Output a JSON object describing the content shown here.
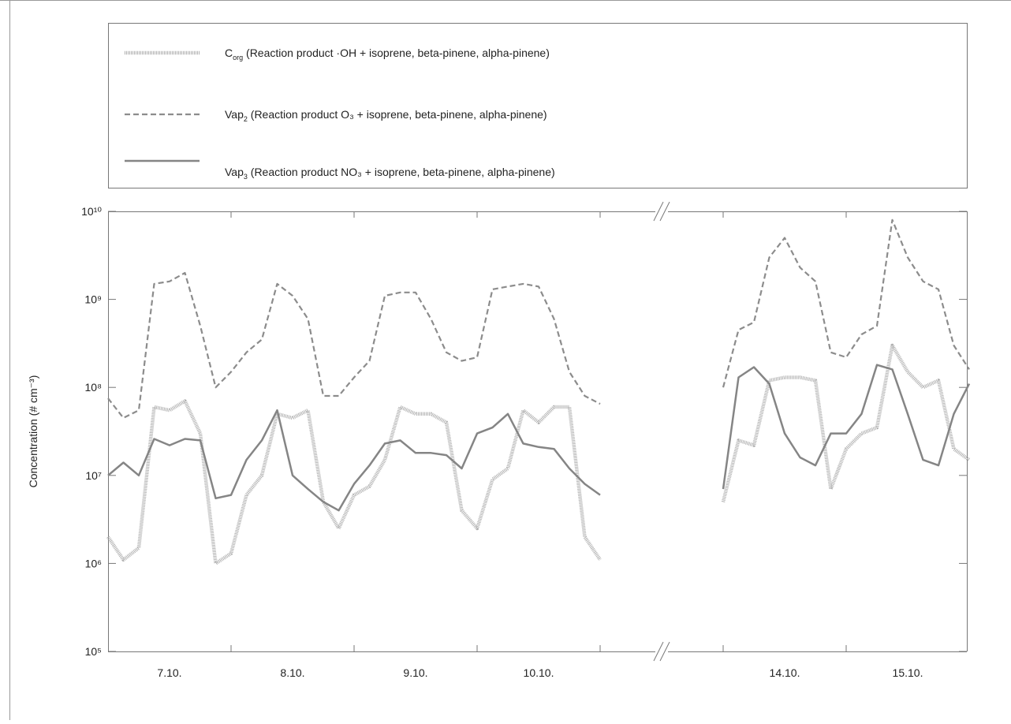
{
  "chart_data": {
    "type": "line",
    "y_label": "Concentration (# cm⁻³)",
    "x": [
      7,
      7.125,
      7.25,
      7.375,
      7.5,
      7.625,
      7.75,
      7.875,
      8,
      8.125,
      8.25,
      8.375,
      8.5,
      8.625,
      8.75,
      8.875,
      9,
      9.125,
      9.25,
      9.375,
      9.5,
      9.625,
      9.75,
      9.875,
      10,
      10.125,
      10.25,
      10.375,
      10.5,
      10.625,
      10.75,
      10.875,
      11,
      14,
      14.125,
      14.25,
      14.375,
      14.5,
      14.625,
      14.75,
      14.875,
      15,
      15.125,
      15.25,
      15.375,
      15.5,
      15.625,
      15.75,
      15.875,
      16
    ],
    "xlim": [
      7,
      16
    ],
    "xbreak": [
      11,
      14
    ],
    "xticks": [
      {
        "value": 7.5,
        "label": "7.10."
      },
      {
        "value": 8.5,
        "label": "8.10."
      },
      {
        "value": 9.5,
        "label": "9.10."
      },
      {
        "value": 10.5,
        "label": "10.10."
      },
      {
        "value": 14.5,
        "label": "14.10."
      },
      {
        "value": 15.5,
        "label": "15.10."
      }
    ],
    "xminorticks": [
      8,
      9,
      10,
      11,
      14,
      15
    ],
    "ylim": [
      100000,
      10000000000
    ],
    "yscale": "log",
    "yticks": [
      {
        "value": 100000,
        "label": "10⁵"
      },
      {
        "value": 1000000,
        "label": "10⁶"
      },
      {
        "value": 10000000,
        "label": "10⁷"
      },
      {
        "value": 100000000,
        "label": "10⁸"
      },
      {
        "value": 1000000000,
        "label": "10⁹"
      },
      {
        "value": 10000000000,
        "label": "10¹⁰"
      }
    ],
    "series": [
      {
        "name": "C",
        "name_sub": "org",
        "description": " (Reaction product ·OH + isoprene, beta-pinene, alpha-pinene)",
        "color": "#b0b0b0",
        "style": "hatched",
        "values": [
          2000000.0,
          1100000.0,
          1500000.0,
          60000000.0,
          55000000.0,
          70000000.0,
          30000000.0,
          1000000.0,
          1300000.0,
          6000000.0,
          10000000.0,
          50000000.0,
          45000000.0,
          55000000.0,
          5000000.0,
          2500000.0,
          6000000.0,
          7500000.0,
          15000000.0,
          60000000.0,
          50000000.0,
          50000000.0,
          40000000.0,
          4000000.0,
          2500000.0,
          9000000.0,
          12000000.0,
          55000000.0,
          40000000.0,
          60000000.0,
          60000000.0,
          2000000.0,
          1100000.0,
          5000000.0,
          25000000.0,
          22000000.0,
          120000000.0,
          130000000.0,
          130000000.0,
          120000000.0,
          7000000.0,
          20000000.0,
          30000000.0,
          35000000.0,
          300000000.0,
          150000000.0,
          100000000.0,
          120000000.0,
          20000000.0,
          15000000.0
        ]
      },
      {
        "name": "Vap",
        "name_sub": "2",
        "description": " (Reaction product O₃ + isoprene, beta-pinene, alpha-pinene)",
        "color": "#8c8c8c",
        "style": "dashed",
        "values": [
          75000000.0,
          45000000.0,
          55000000.0,
          1500000000.0,
          1600000000.0,
          2000000000.0,
          500000000.0,
          100000000.0,
          150000000.0,
          250000000.0,
          350000000.0,
          1500000000.0,
          1100000000.0,
          600000000.0,
          80000000.0,
          80000000.0,
          130000000.0,
          200000000.0,
          1100000000.0,
          1200000000.0,
          1200000000.0,
          600000000.0,
          250000000.0,
          200000000.0,
          220000000.0,
          1300000000.0,
          1400000000.0,
          1500000000.0,
          1400000000.0,
          600000000.0,
          150000000.0,
          80000000.0,
          65000000.0,
          100000000.0,
          450000000.0,
          550000000.0,
          3000000000.0,
          5000000000.0,
          2300000000.0,
          1600000000.0,
          250000000.0,
          220000000.0,
          400000000.0,
          500000000.0,
          8000000000.0,
          3000000000.0,
          1600000000.0,
          1300000000.0,
          300000000.0,
          160000000.0
        ]
      },
      {
        "name": "Vap",
        "name_sub": "3",
        "description": " (Reaction product NO₃ + isoprene, beta-pinene, alpha-pinene)",
        "color": "#858585",
        "style": "solid",
        "values": [
          10000000.0,
          14000000.0,
          10000000.0,
          26000000.0,
          22000000.0,
          26000000.0,
          25000000.0,
          5500000.0,
          6000000.0,
          15000000.0,
          25000000.0,
          55000000.0,
          10000000.0,
          7000000.0,
          5000000.0,
          4000000.0,
          8000000.0,
          13000000.0,
          23000000.0,
          25000000.0,
          18000000.0,
          18000000.0,
          17000000.0,
          12000000.0,
          30000000.0,
          35000000.0,
          50000000.0,
          23000000.0,
          21000000.0,
          20000000.0,
          12000000.0,
          8000000.0,
          6000000.0,
          7000000.0,
          130000000.0,
          170000000.0,
          110000000.0,
          30000000.0,
          16000000.0,
          13000000.0,
          30000000.0,
          30000000.0,
          50000000.0,
          180000000.0,
          160000000.0,
          50000000.0,
          15000000.0,
          13000000.0,
          50000000.0,
          110000000.0
        ]
      }
    ]
  }
}
